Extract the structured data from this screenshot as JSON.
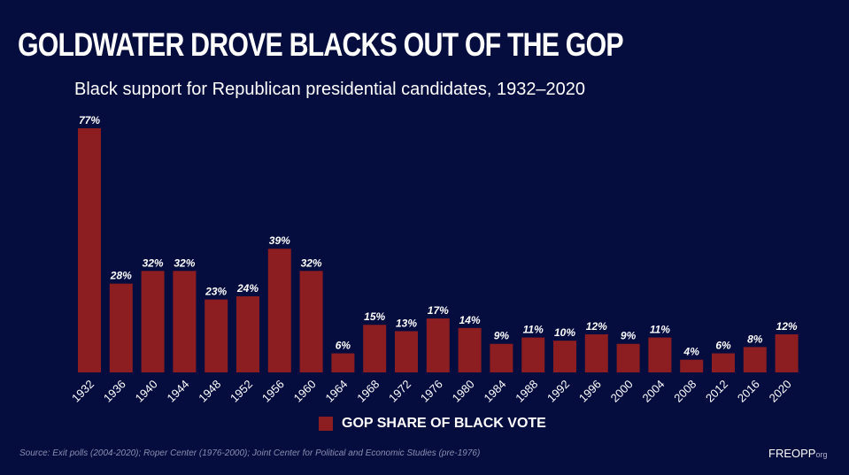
{
  "header": {
    "title": "GOLDWATER DROVE BLACKS OUT OF THE GOP",
    "subtitle": "Black support for Republican presidential candidates, 1932–2020"
  },
  "chart_data": {
    "type": "bar",
    "title": "GOLDWATER DROVE BLACKS OUT OF THE GOP",
    "subtitle": "Black support for Republican presidential candidates, 1932–2020",
    "categories": [
      "1932",
      "1936",
      "1940",
      "1944",
      "1948",
      "1952",
      "1956",
      "1960",
      "1964",
      "1968",
      "1972",
      "1976",
      "1980",
      "1984",
      "1988",
      "1992",
      "1996",
      "2000",
      "2004",
      "2008",
      "2012",
      "2016",
      "2020"
    ],
    "series": [
      {
        "name": "GOP SHARE OF BLACK VOTE",
        "values": [
          77,
          28,
          32,
          32,
          23,
          24,
          39,
          32,
          6,
          15,
          13,
          17,
          14,
          9,
          11,
          10,
          12,
          9,
          11,
          4,
          6,
          8,
          12
        ],
        "color": "#8c1d20"
      }
    ],
    "data_labels": [
      "77%",
      "28%",
      "32%",
      "32%",
      "23%",
      "24%",
      "39%",
      "32%",
      "6%",
      "15%",
      "13%",
      "17%",
      "14%",
      "9%",
      "11%",
      "10%",
      "12%",
      "9%",
      "11%",
      "4%",
      "6%",
      "8%",
      "12%"
    ],
    "ylim": [
      0,
      77
    ],
    "grid": false,
    "legend": "bottom-center",
    "background": "#050c3e"
  },
  "legend": {
    "label": "GOP SHARE OF BLACK VOTE"
  },
  "footer": {
    "source": "Source: Exit polls (2004-2020); Roper Center (1976-2000); Joint Center for Political and Economic Studies (pre-1976)",
    "logo_main": "FREOPP",
    "logo_suffix": "org"
  }
}
